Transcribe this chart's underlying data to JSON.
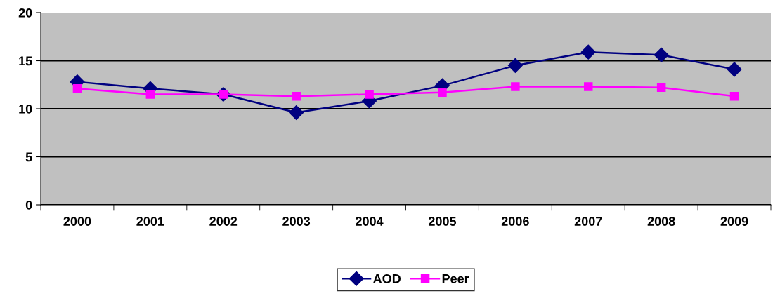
{
  "chart_data": {
    "type": "line",
    "categories": [
      "2000",
      "2001",
      "2002",
      "2003",
      "2004",
      "2005",
      "2006",
      "2007",
      "2008",
      "2009"
    ],
    "series": [
      {
        "name": "AOD",
        "color": "#000080",
        "marker": "diamond",
        "values": [
          12.8,
          12.1,
          11.5,
          9.6,
          10.8,
          12.4,
          14.5,
          15.9,
          15.6,
          14.1
        ]
      },
      {
        "name": "Peer",
        "color": "#ff00ff",
        "marker": "square",
        "values": [
          12.1,
          11.5,
          11.5,
          11.3,
          11.5,
          11.7,
          12.3,
          12.3,
          12.2,
          11.3
        ]
      }
    ],
    "ylim": [
      0,
      20
    ],
    "yticks": [
      0,
      5,
      10,
      15,
      20
    ],
    "grid": "y",
    "legend": "bottom",
    "line_style": "solid"
  }
}
